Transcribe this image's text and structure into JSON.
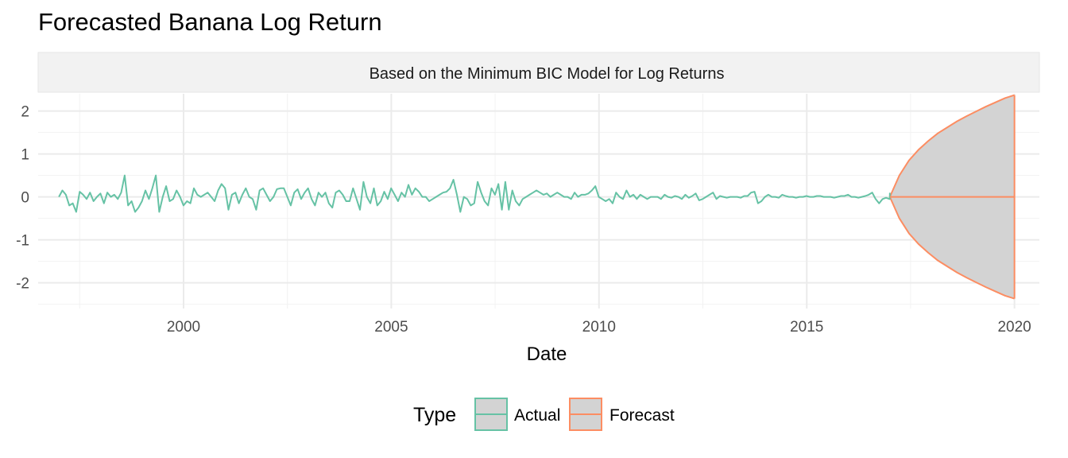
{
  "chart_data": {
    "type": "line",
    "title": "Forecasted Banana Log Return",
    "subtitle": "Based on the Minimum BIC Model for Log Returns",
    "xlabel": "Date",
    "ylabel": "",
    "xlim": [
      1996.5,
      2020.6
    ],
    "ylim": [
      -2.6,
      2.4
    ],
    "x_ticks": [
      2000,
      2005,
      2010,
      2015,
      2020
    ],
    "x_tick_labels": [
      "2000",
      "2005",
      "2010",
      "2015",
      "2020"
    ],
    "y_ticks": [
      -2,
      -1,
      0,
      1,
      2
    ],
    "y_tick_labels": [
      "-2",
      "-1",
      "0",
      "1",
      "2"
    ],
    "grid": true,
    "legend": {
      "title": "Type",
      "position": "bottom",
      "entries": [
        "Actual",
        "Forecast"
      ]
    },
    "series": [
      {
        "name": "Actual",
        "color": "#66c2a5",
        "x_start": 1997.0,
        "x_step": 0.0833,
        "values": [
          0.0,
          0.15,
          0.05,
          -0.2,
          -0.15,
          -0.35,
          0.12,
          0.05,
          -0.05,
          0.1,
          -0.1,
          0.0,
          0.08,
          -0.15,
          0.1,
          0.0,
          0.05,
          -0.05,
          0.1,
          0.5,
          -0.2,
          -0.1,
          -0.35,
          -0.25,
          -0.1,
          0.15,
          -0.05,
          0.2,
          0.5,
          -0.35,
          0.0,
          0.25,
          -0.1,
          -0.05,
          0.15,
          0.0,
          -0.2,
          -0.1,
          -0.15,
          0.2,
          0.05,
          0.0,
          0.05,
          0.1,
          0.0,
          -0.1,
          0.15,
          0.3,
          0.2,
          -0.3,
          0.05,
          0.1,
          -0.15,
          0.05,
          0.2,
          0.0,
          -0.05,
          -0.3,
          0.15,
          0.2,
          0.05,
          -0.1,
          0.0,
          0.18,
          0.2,
          0.2,
          0.0,
          -0.2,
          0.1,
          0.18,
          -0.05,
          0.1,
          0.2,
          -0.05,
          -0.2,
          0.1,
          0.0,
          0.1,
          -0.15,
          -0.25,
          0.1,
          0.15,
          0.05,
          -0.1,
          -0.1,
          0.2,
          -0.05,
          -0.3,
          0.35,
          0.0,
          -0.15,
          0.2,
          -0.2,
          -0.1,
          0.12,
          -0.05,
          0.2,
          0.05,
          -0.1,
          0.1,
          0.0,
          0.28,
          0.05,
          0.2,
          0.12,
          0.0,
          0.0,
          -0.1,
          -0.05,
          0.0,
          0.05,
          0.1,
          0.12,
          0.2,
          0.4,
          0.05,
          -0.35,
          0.0,
          -0.05,
          -0.2,
          -0.15,
          0.35,
          0.1,
          -0.1,
          -0.2,
          0.2,
          0.05,
          0.3,
          -0.3,
          0.35,
          -0.3,
          0.15,
          -0.1,
          -0.2,
          -0.05,
          0.0,
          0.05,
          0.1,
          0.15,
          0.1,
          0.05,
          0.08,
          0.0,
          0.05,
          0.1,
          0.05,
          0.0,
          0.0,
          -0.05,
          0.1,
          0.0,
          0.05,
          0.05,
          0.08,
          0.15,
          0.25,
          0.0,
          -0.05,
          -0.1,
          -0.05,
          -0.15,
          0.1,
          0.0,
          -0.05,
          0.15,
          0.0,
          0.05,
          -0.05,
          0.05,
          0.0,
          -0.05,
          0.0,
          0.0,
          0.0,
          -0.05,
          0.05,
          0.0,
          -0.02,
          0.02,
          0.0,
          -0.05,
          0.05,
          -0.02,
          0.02,
          0.08,
          -0.08,
          -0.05,
          0.0,
          0.05,
          0.1,
          -0.05,
          0.02,
          0.0,
          -0.02,
          0.0,
          0.0,
          0.0,
          -0.02,
          0.02,
          0.02,
          0.1,
          0.12,
          -0.15,
          -0.1,
          0.0,
          0.05,
          0.0,
          0.0,
          -0.02,
          0.05,
          0.02,
          0.0,
          0.0,
          -0.02,
          0.0,
          0.0,
          0.02,
          0.0,
          0.0,
          0.02,
          0.02,
          0.0,
          0.0,
          0.0,
          -0.02,
          0.0,
          0.02,
          0.02,
          0.05,
          0.0,
          0.0,
          -0.02,
          0.0,
          0.02,
          0.05,
          0.1,
          -0.05,
          -0.15,
          -0.05,
          -0.02,
          -0.05,
          0.0,
          0.0,
          0.05,
          0.0,
          0.05,
          -0.05,
          0.0,
          0.05,
          0.08,
          0.0,
          -0.02,
          0.0,
          0.02,
          0.02,
          -0.02,
          -0.05,
          0.0,
          0.0,
          0.02,
          0.0
        ]
      },
      {
        "name": "Forecast",
        "color": "#fc8d62",
        "x_start": 2017.0,
        "x_end": 2020.0,
        "mean": 0.0,
        "interval_upper": [
          0.0,
          0.5,
          0.85,
          1.1,
          1.3,
          1.48,
          1.62,
          1.76,
          1.88,
          1.99,
          2.1,
          2.2,
          2.3,
          2.37
        ],
        "interval_lower": [
          0.0,
          -0.5,
          -0.85,
          -1.1,
          -1.3,
          -1.48,
          -1.62,
          -1.76,
          -1.88,
          -1.99,
          -2.1,
          -2.2,
          -2.3,
          -2.37
        ],
        "interval_fill": "#d3d3d3"
      }
    ]
  }
}
